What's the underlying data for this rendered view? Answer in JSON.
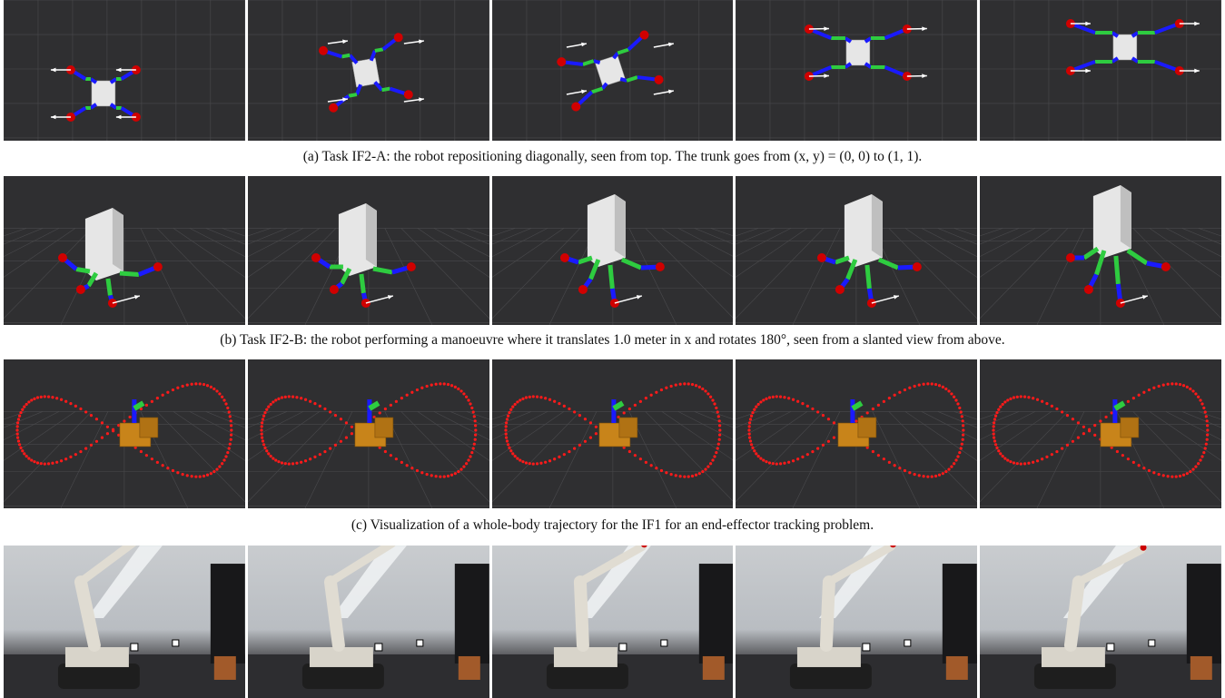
{
  "figure": {
    "row_a": {
      "caption": "(a) Task IF2-A: the robot repositioning diagonally, seen from top. The trunk goes from (x, y) = (0, 0) to (1, 1).",
      "frames": 5,
      "description_icon": "quadruped-top-view"
    },
    "row_b": {
      "caption": "(b) Task IF2-B: the robot performing a manoeuvre where it translates 1.0 meter in x and rotates 180°, seen from a slanted view from above.",
      "frames": 5,
      "description_icon": "quadruped-slanted-view"
    },
    "row_c": {
      "caption": "(c) Visualization of a whole-body trajectory for the IF1 for an end-effector tracking problem.",
      "frames": 5,
      "description_icon": "figure-eight-trajectory"
    },
    "row_d": {
      "frames": 5,
      "description_icon": "robot-arm-photo"
    },
    "colors": {
      "viewport_bg": "#2f2f31",
      "link_green": "#2ecc40",
      "joint_blue": "#1a1aff",
      "foot_red": "#d00000",
      "trunk_white": "#e6e6e6",
      "trajectory_red": "#ff1a1a",
      "base_orange": "#c8841a"
    }
  }
}
